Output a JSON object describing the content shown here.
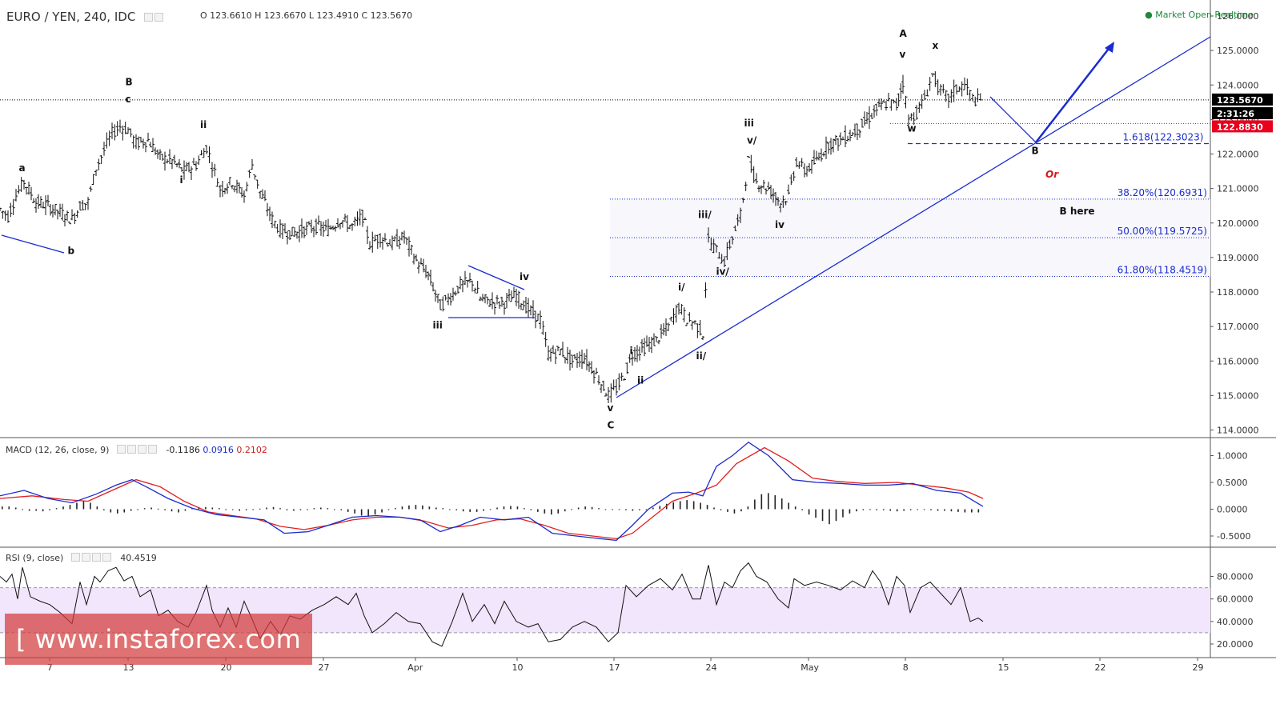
{
  "header": {
    "symbol": "EURO / YEN, 240, IDC",
    "ohlc": "O 123.6610 H 123.6670 L 123.4910 C 123.5670",
    "market_status": "Market Open Realtime"
  },
  "price_badges": {
    "last": "123.5670",
    "countdown": "2:31:26",
    "red": "122.8830"
  },
  "macd": {
    "title": "MACD (12, 26, close, 9)",
    "v1": "-0.1186",
    "v2": "0.0916",
    "v3": "0.2102"
  },
  "rsi": {
    "title": "RSI (9, close)",
    "value": "40.4519"
  },
  "watermark": "[ www.instaforex.com ]",
  "colors": {
    "annotation_blue": "#1a2ccf",
    "macd_line": "#1a2ccf",
    "signal_line": "#e02020",
    "rsi_band": "#f1e6fb",
    "market_dot": "#1b8a3a",
    "badge_black": "#000000",
    "badge_red": "#e8001c"
  },
  "chart_data": {
    "type": "candlestick-ohlc",
    "timeframe": "240",
    "x_tick_labels": [
      "7",
      "13",
      "20",
      "27",
      "Apr",
      "10",
      "17",
      "24",
      "May",
      "8",
      "15",
      "22",
      "29"
    ],
    "y_range": [
      113.8,
      126.25
    ],
    "y_ticks": [
      "114.0000",
      "115.0000",
      "116.0000",
      "117.0000",
      "118.0000",
      "119.0000",
      "120.0000",
      "121.0000",
      "122.0000",
      "123.0000",
      "124.0000",
      "125.0000",
      "126.0000"
    ],
    "price_path": [
      [
        0,
        120.4
      ],
      [
        10,
        120.2
      ],
      [
        20,
        120.8
      ],
      [
        30,
        121.2
      ],
      [
        45,
        120.6
      ],
      [
        60,
        120.5
      ],
      [
        75,
        120.3
      ],
      [
        90,
        120.1
      ],
      [
        100,
        120.5
      ],
      [
        110,
        120.6
      ],
      [
        120,
        121.6
      ],
      [
        130,
        122.1
      ],
      [
        140,
        122.6
      ],
      [
        150,
        122.8
      ],
      [
        160,
        122.7
      ],
      [
        170,
        122.3
      ],
      [
        185,
        122.4
      ],
      [
        200,
        121.9
      ],
      [
        215,
        121.8
      ],
      [
        230,
        121.5
      ],
      [
        245,
        121.7
      ],
      [
        258,
        122.2
      ],
      [
        265,
        121.7
      ],
      [
        275,
        121.0
      ],
      [
        290,
        121.2
      ],
      [
        305,
        120.8
      ],
      [
        315,
        121.7
      ],
      [
        325,
        120.9
      ],
      [
        340,
        120.1
      ],
      [
        350,
        119.8
      ],
      [
        365,
        119.7
      ],
      [
        380,
        119.8
      ],
      [
        395,
        119.9
      ],
      [
        410,
        119.8
      ],
      [
        425,
        120.1
      ],
      [
        440,
        119.9
      ],
      [
        453,
        120.2
      ],
      [
        462,
        119.4
      ],
      [
        475,
        119.6
      ],
      [
        490,
        119.4
      ],
      [
        505,
        119.6
      ],
      [
        520,
        118.9
      ],
      [
        535,
        118.5
      ],
      [
        550,
        117.6
      ],
      [
        560,
        117.8
      ],
      [
        575,
        118.2
      ],
      [
        590,
        118.3
      ],
      [
        600,
        117.8
      ],
      [
        615,
        117.7
      ],
      [
        630,
        117.7
      ],
      [
        645,
        117.9
      ],
      [
        660,
        117.5
      ],
      [
        675,
        117.2
      ],
      [
        685,
        116.2
      ],
      [
        700,
        116.3
      ],
      [
        715,
        116.0
      ],
      [
        730,
        116.1
      ],
      [
        745,
        115.6
      ],
      [
        760,
        115.0
      ],
      [
        770,
        115.2
      ],
      [
        780,
        115.6
      ],
      [
        790,
        116.2
      ],
      [
        805,
        116.4
      ],
      [
        820,
        116.6
      ],
      [
        835,
        117.0
      ],
      [
        848,
        117.6
      ],
      [
        858,
        117.2
      ],
      [
        868,
        117.1
      ],
      [
        878,
        116.8
      ],
      [
        885,
        119.5
      ],
      [
        895,
        119.2
      ],
      [
        905,
        118.9
      ],
      [
        915,
        119.6
      ],
      [
        925,
        120.2
      ],
      [
        935,
        121.8
      ],
      [
        945,
        121.2
      ],
      [
        960,
        121.0
      ],
      [
        975,
        120.6
      ],
      [
        985,
        120.8
      ],
      [
        995,
        121.8
      ],
      [
        1005,
        121.5
      ],
      [
        1020,
        121.8
      ],
      [
        1035,
        122.3
      ],
      [
        1050,
        122.4
      ],
      [
        1065,
        122.6
      ],
      [
        1080,
        122.9
      ],
      [
        1095,
        123.3
      ],
      [
        1110,
        123.5
      ],
      [
        1120,
        123.4
      ],
      [
        1128,
        124.1
      ],
      [
        1135,
        123.0
      ],
      [
        1145,
        123.2
      ],
      [
        1155,
        123.6
      ],
      [
        1165,
        124.3
      ],
      [
        1175,
        123.8
      ],
      [
        1185,
        123.6
      ],
      [
        1195,
        123.9
      ],
      [
        1205,
        124.0
      ],
      [
        1215,
        123.6
      ],
      [
        1228,
        123.5
      ]
    ],
    "fib_levels": [
      {
        "label": "1.618(122.3023)",
        "value": 122.3023,
        "style": "dashed"
      },
      {
        "label": "38.20%(120.6931)",
        "value": 120.6931,
        "style": "dotted"
      },
      {
        "label": "50.00%(119.5725)",
        "value": 119.5725,
        "style": "dotted"
      },
      {
        "label": "61.80%(118.4519)",
        "value": 118.4519,
        "style": "dotted"
      }
    ],
    "price_lines": {
      "last": 123.567,
      "red": 122.883
    },
    "wave_labels": [
      {
        "text": "a",
        "x": 27,
        "y": 121.5
      },
      {
        "text": "b",
        "x": 88,
        "y": 119.1
      },
      {
        "text": "B",
        "x": 160,
        "y": 124.0
      },
      {
        "text": "c",
        "x": 160,
        "y": 123.5
      },
      {
        "text": "ii",
        "x": 257,
        "y": 122.75
      },
      {
        "text": "i",
        "x": 228,
        "y": 121.15
      },
      {
        "text": "iii",
        "x": 551,
        "y": 116.95
      },
      {
        "text": "iv",
        "x": 656,
        "y": 118.35
      },
      {
        "text": "v",
        "x": 762,
        "y": 114.55
      },
      {
        "text": "C",
        "x": 762,
        "y": 114.05
      },
      {
        "text": "i",
        "x": 790,
        "y": 116.2
      },
      {
        "text": "ii",
        "x": 803,
        "y": 115.35
      },
      {
        "text": "i/",
        "x": 854,
        "y": 118.05
      },
      {
        "text": "ii/",
        "x": 880,
        "y": 116.05
      },
      {
        "text": "iii/",
        "x": 886,
        "y": 120.15
      },
      {
        "text": "iv/",
        "x": 905,
        "y": 118.5
      },
      {
        "text": "iii",
        "x": 940,
        "y": 122.8
      },
      {
        "text": "v/",
        "x": 940,
        "y": 122.3
      },
      {
        "text": "iv",
        "x": 975,
        "y": 119.85
      },
      {
        "text": "A",
        "x": 1127,
        "y": 125.4
      },
      {
        "text": "v",
        "x": 1127,
        "y": 124.8
      },
      {
        "text": "x",
        "x": 1168,
        "y": 125.05
      },
      {
        "text": "w",
        "x": 1137,
        "y": 122.65
      },
      {
        "text": "B",
        "x": 1292,
        "y": 122.0
      },
      {
        "text": "B  here",
        "x": 1348,
        "y": 120.25
      }
    ],
    "or_label": "Or",
    "macd_y_ticks": [
      "1.0000",
      "0.5000",
      "0.0000",
      "-0.5000"
    ],
    "macd_range": [
      -0.65,
      1.25
    ],
    "macd_line": [
      [
        0,
        0.25
      ],
      [
        30,
        0.35
      ],
      [
        60,
        0.2
      ],
      [
        90,
        0.12
      ],
      [
        120,
        0.28
      ],
      [
        145,
        0.45
      ],
      [
        165,
        0.55
      ],
      [
        185,
        0.4
      ],
      [
        210,
        0.2
      ],
      [
        240,
        0.02
      ],
      [
        270,
        -0.1
      ],
      [
        300,
        -0.15
      ],
      [
        330,
        -0.2
      ],
      [
        355,
        -0.45
      ],
      [
        385,
        -0.42
      ],
      [
        410,
        -0.3
      ],
      [
        440,
        -0.15
      ],
      [
        470,
        -0.12
      ],
      [
        500,
        -0.15
      ],
      [
        525,
        -0.2
      ],
      [
        550,
        -0.42
      ],
      [
        575,
        -0.3
      ],
      [
        600,
        -0.15
      ],
      [
        630,
        -0.2
      ],
      [
        660,
        -0.15
      ],
      [
        690,
        -0.45
      ],
      [
        720,
        -0.5
      ],
      [
        750,
        -0.55
      ],
      [
        770,
        -0.58
      ],
      [
        790,
        -0.3
      ],
      [
        810,
        0.0
      ],
      [
        840,
        0.3
      ],
      [
        860,
        0.32
      ],
      [
        878,
        0.25
      ],
      [
        895,
        0.8
      ],
      [
        915,
        1.0
      ],
      [
        935,
        1.25
      ],
      [
        960,
        1.0
      ],
      [
        990,
        0.55
      ],
      [
        1020,
        0.5
      ],
      [
        1050,
        0.48
      ],
      [
        1080,
        0.45
      ],
      [
        1110,
        0.45
      ],
      [
        1140,
        0.48
      ],
      [
        1170,
        0.35
      ],
      [
        1200,
        0.3
      ],
      [
        1228,
        0.05
      ]
    ],
    "signal_line": [
      [
        0,
        0.2
      ],
      [
        40,
        0.25
      ],
      [
        80,
        0.18
      ],
      [
        110,
        0.15
      ],
      [
        140,
        0.35
      ],
      [
        170,
        0.55
      ],
      [
        200,
        0.42
      ],
      [
        230,
        0.15
      ],
      [
        260,
        -0.05
      ],
      [
        290,
        -0.12
      ],
      [
        320,
        -0.18
      ],
      [
        350,
        -0.32
      ],
      [
        380,
        -0.38
      ],
      [
        410,
        -0.3
      ],
      [
        440,
        -0.2
      ],
      [
        470,
        -0.15
      ],
      [
        500,
        -0.15
      ],
      [
        530,
        -0.22
      ],
      [
        560,
        -0.35
      ],
      [
        590,
        -0.3
      ],
      [
        620,
        -0.2
      ],
      [
        650,
        -0.18
      ],
      [
        680,
        -0.3
      ],
      [
        710,
        -0.45
      ],
      [
        740,
        -0.5
      ],
      [
        770,
        -0.55
      ],
      [
        790,
        -0.45
      ],
      [
        815,
        -0.15
      ],
      [
        840,
        0.15
      ],
      [
        870,
        0.3
      ],
      [
        895,
        0.45
      ],
      [
        920,
        0.85
      ],
      [
        955,
        1.15
      ],
      [
        985,
        0.9
      ],
      [
        1015,
        0.58
      ],
      [
        1045,
        0.52
      ],
      [
        1080,
        0.48
      ],
      [
        1120,
        0.5
      ],
      [
        1150,
        0.45
      ],
      [
        1180,
        0.4
      ],
      [
        1210,
        0.32
      ],
      [
        1228,
        0.2
      ]
    ],
    "macd_hist": [
      0.05,
      0.05,
      0.03,
      0.0,
      -0.03,
      -0.03,
      -0.04,
      -0.02,
      0.02,
      0.05,
      0.08,
      0.12,
      0.15,
      0.12,
      0.05,
      -0.02,
      -0.06,
      -0.08,
      -0.06,
      -0.03,
      0.0,
      0.02,
      0.03,
      0.01,
      -0.02,
      -0.04,
      -0.06,
      -0.03,
      0.02,
      0.04,
      0.04,
      0.03,
      0.02,
      0.0,
      -0.01,
      -0.03,
      -0.02,
      0.0,
      0.01,
      0.03,
      0.04,
      0.02,
      -0.02,
      -0.03,
      -0.02,
      0.0,
      0.02,
      0.03,
      0.02,
      0.0,
      -0.02,
      -0.05,
      -0.08,
      -0.12,
      -0.14,
      -0.1,
      -0.06,
      -0.01,
      0.02,
      0.05,
      0.07,
      0.08,
      0.07,
      0.05,
      0.03,
      0.02,
      0.0,
      -0.02,
      -0.04,
      -0.05,
      -0.05,
      -0.03,
      0.0,
      0.03,
      0.05,
      0.06,
      0.05,
      0.02,
      -0.02,
      -0.05,
      -0.08,
      -0.1,
      -0.08,
      -0.04,
      0.0,
      0.03,
      0.05,
      0.04,
      0.02,
      0.0,
      -0.01,
      -0.01,
      -0.02,
      -0.03,
      -0.02,
      0.0,
      0.03,
      0.06,
      0.1,
      0.13,
      0.15,
      0.17,
      0.15,
      0.12,
      0.08,
      0.03,
      -0.02,
      -0.05,
      -0.08,
      -0.04,
      0.05,
      0.18,
      0.28,
      0.3,
      0.26,
      0.2,
      0.12,
      0.05,
      -0.02,
      -0.1,
      -0.16,
      -0.22,
      -0.28,
      -0.22,
      -0.15,
      -0.08,
      -0.04,
      -0.02,
      -0.01,
      -0.02,
      -0.02,
      -0.03,
      -0.04,
      -0.03,
      -0.02,
      -0.01,
      0.0,
      -0.02,
      -0.03,
      -0.03,
      -0.04,
      -0.05,
      -0.06,
      -0.06,
      -0.06
    ],
    "rsi_y_ticks": [
      "80.0000",
      "60.0000",
      "40.0000",
      "20.0000"
    ],
    "rsi_range": [
      10,
      95
    ],
    "rsi_band": [
      30,
      70
    ],
    "rsi_line": [
      [
        0,
        80
      ],
      [
        8,
        75
      ],
      [
        15,
        82
      ],
      [
        22,
        60
      ],
      [
        28,
        88
      ],
      [
        38,
        62
      ],
      [
        50,
        58
      ],
      [
        62,
        55
      ],
      [
        75,
        48
      ],
      [
        90,
        38
      ],
      [
        100,
        75
      ],
      [
        108,
        55
      ],
      [
        118,
        80
      ],
      [
        125,
        75
      ],
      [
        135,
        85
      ],
      [
        145,
        88
      ],
      [
        155,
        76
      ],
      [
        165,
        80
      ],
      [
        175,
        62
      ],
      [
        188,
        68
      ],
      [
        198,
        45
      ],
      [
        210,
        50
      ],
      [
        222,
        40
      ],
      [
        235,
        35
      ],
      [
        245,
        48
      ],
      [
        258,
        72
      ],
      [
        265,
        50
      ],
      [
        275,
        35
      ],
      [
        285,
        52
      ],
      [
        295,
        35
      ],
      [
        305,
        58
      ],
      [
        315,
        42
      ],
      [
        325,
        25
      ],
      [
        338,
        40
      ],
      [
        350,
        28
      ],
      [
        362,
        45
      ],
      [
        375,
        42
      ],
      [
        390,
        50
      ],
      [
        405,
        55
      ],
      [
        420,
        62
      ],
      [
        435,
        55
      ],
      [
        445,
        65
      ],
      [
        455,
        45
      ],
      [
        465,
        30
      ],
      [
        480,
        38
      ],
      [
        495,
        48
      ],
      [
        510,
        40
      ],
      [
        525,
        38
      ],
      [
        540,
        22
      ],
      [
        552,
        18
      ],
      [
        565,
        40
      ],
      [
        578,
        65
      ],
      [
        590,
        40
      ],
      [
        605,
        55
      ],
      [
        618,
        38
      ],
      [
        630,
        58
      ],
      [
        645,
        40
      ],
      [
        660,
        35
      ],
      [
        672,
        38
      ],
      [
        685,
        22
      ],
      [
        700,
        24
      ],
      [
        715,
        35
      ],
      [
        730,
        40
      ],
      [
        745,
        35
      ],
      [
        760,
        22
      ],
      [
        772,
        30
      ],
      [
        782,
        72
      ],
      [
        795,
        62
      ],
      [
        810,
        72
      ],
      [
        825,
        78
      ],
      [
        840,
        68
      ],
      [
        852,
        82
      ],
      [
        865,
        60
      ],
      [
        875,
        60
      ],
      [
        885,
        90
      ],
      [
        895,
        55
      ],
      [
        905,
        75
      ],
      [
        915,
        70
      ],
      [
        925,
        85
      ],
      [
        935,
        92
      ],
      [
        945,
        80
      ],
      [
        958,
        75
      ],
      [
        972,
        60
      ],
      [
        985,
        52
      ],
      [
        992,
        78
      ],
      [
        1005,
        72
      ],
      [
        1020,
        75
      ],
      [
        1035,
        72
      ],
      [
        1050,
        68
      ],
      [
        1065,
        76
      ],
      [
        1080,
        70
      ],
      [
        1090,
        85
      ],
      [
        1100,
        75
      ],
      [
        1110,
        55
      ],
      [
        1120,
        80
      ],
      [
        1130,
        72
      ],
      [
        1137,
        48
      ],
      [
        1150,
        70
      ],
      [
        1162,
        75
      ],
      [
        1175,
        65
      ],
      [
        1188,
        55
      ],
      [
        1200,
        70
      ],
      [
        1212,
        40
      ],
      [
        1222,
        43
      ],
      [
        1228,
        40
      ]
    ]
  }
}
